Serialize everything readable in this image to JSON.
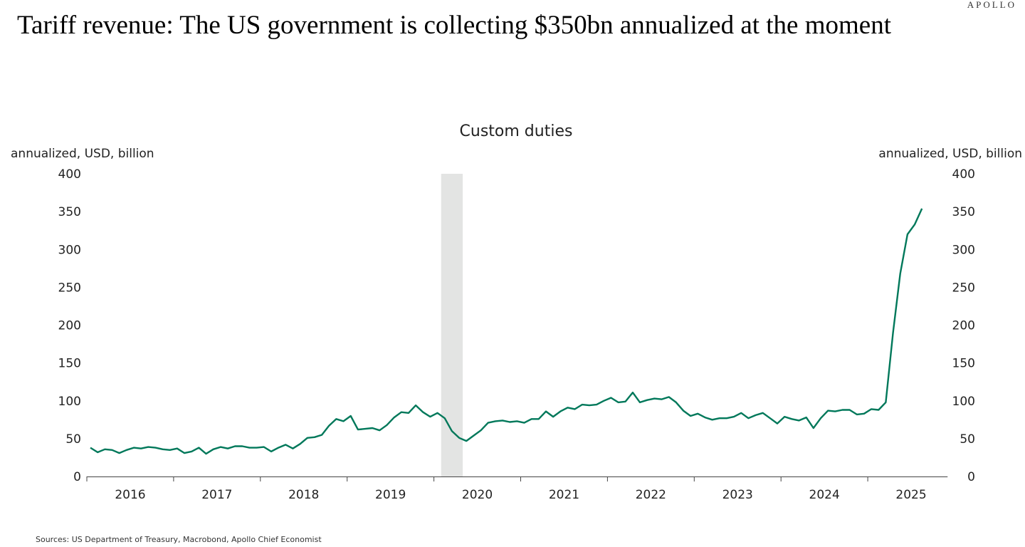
{
  "title": "Tariff revenue: The US government is collecting $350bn annualized at the moment",
  "logo": "APOLLO",
  "source": "Sources: US Department of Treasury, Macrobond, Apollo Chief Economist",
  "chart_data": {
    "type": "line",
    "title": "Custom duties",
    "ylabel_left": "annualized, USD, billion",
    "ylabel_right": "annualized, USD, billion",
    "ylim": [
      0,
      400
    ],
    "yticks": [
      0,
      50,
      100,
      150,
      200,
      250,
      300,
      350,
      400
    ],
    "xticks": [
      "2016",
      "2017",
      "2018",
      "2019",
      "2020",
      "2021",
      "2022",
      "2023",
      "2024",
      "2025"
    ],
    "grid": false,
    "line_color": "#00785a",
    "shading": {
      "color": "#e3e4e3",
      "from": "2020-02",
      "to": "2020-04"
    },
    "x": [
      "2016-01",
      "2016-02",
      "2016-03",
      "2016-04",
      "2016-05",
      "2016-06",
      "2016-07",
      "2016-08",
      "2016-09",
      "2016-10",
      "2016-11",
      "2016-12",
      "2017-01",
      "2017-02",
      "2017-03",
      "2017-04",
      "2017-05",
      "2017-06",
      "2017-07",
      "2017-08",
      "2017-09",
      "2017-10",
      "2017-11",
      "2017-12",
      "2018-01",
      "2018-02",
      "2018-03",
      "2018-04",
      "2018-05",
      "2018-06",
      "2018-07",
      "2018-08",
      "2018-09",
      "2018-10",
      "2018-11",
      "2018-12",
      "2019-01",
      "2019-02",
      "2019-03",
      "2019-04",
      "2019-05",
      "2019-06",
      "2019-07",
      "2019-08",
      "2019-09",
      "2019-10",
      "2019-11",
      "2019-12",
      "2020-01",
      "2020-02",
      "2020-03",
      "2020-04",
      "2020-05",
      "2020-06",
      "2020-07",
      "2020-08",
      "2020-09",
      "2020-10",
      "2020-11",
      "2020-12",
      "2021-01",
      "2021-02",
      "2021-03",
      "2021-04",
      "2021-05",
      "2021-06",
      "2021-07",
      "2021-08",
      "2021-09",
      "2021-10",
      "2021-11",
      "2021-12",
      "2022-01",
      "2022-02",
      "2022-03",
      "2022-04",
      "2022-05",
      "2022-06",
      "2022-07",
      "2022-08",
      "2022-09",
      "2022-10",
      "2022-11",
      "2022-12",
      "2023-01",
      "2023-02",
      "2023-03",
      "2023-04",
      "2023-05",
      "2023-06",
      "2023-07",
      "2023-08",
      "2023-09",
      "2023-10",
      "2023-11",
      "2023-12",
      "2024-01",
      "2024-02",
      "2024-03",
      "2024-04",
      "2024-05",
      "2024-06",
      "2024-07",
      "2024-08",
      "2024-09",
      "2024-10",
      "2024-11",
      "2024-12",
      "2025-01",
      "2025-02",
      "2025-03",
      "2025-04",
      "2025-05",
      "2025-06",
      "2025-07",
      "2025-08"
    ],
    "values": [
      38,
      32,
      36,
      35,
      31,
      35,
      38,
      37,
      39,
      38,
      36,
      35,
      37,
      31,
      33,
      38,
      30,
      36,
      39,
      37,
      40,
      40,
      38,
      38,
      39,
      33,
      38,
      42,
      37,
      43,
      51,
      52,
      55,
      67,
      76,
      73,
      80,
      62,
      63,
      64,
      61,
      68,
      78,
      85,
      84,
      94,
      85,
      79,
      84,
      77,
      60,
      51,
      47,
      54,
      61,
      71,
      73,
      74,
      72,
      73,
      71,
      76,
      76,
      86,
      79,
      86,
      91,
      89,
      95,
      94,
      95,
      100,
      104,
      98,
      99,
      111,
      98,
      101,
      103,
      102,
      105,
      98,
      87,
      80,
      83,
      78,
      75,
      77,
      77,
      79,
      84,
      77,
      81,
      84,
      77,
      70,
      79,
      76,
      74,
      78,
      64,
      77,
      87,
      86,
      88,
      88,
      82,
      83,
      89,
      88,
      98,
      190,
      268,
      320,
      333,
      354
    ]
  }
}
